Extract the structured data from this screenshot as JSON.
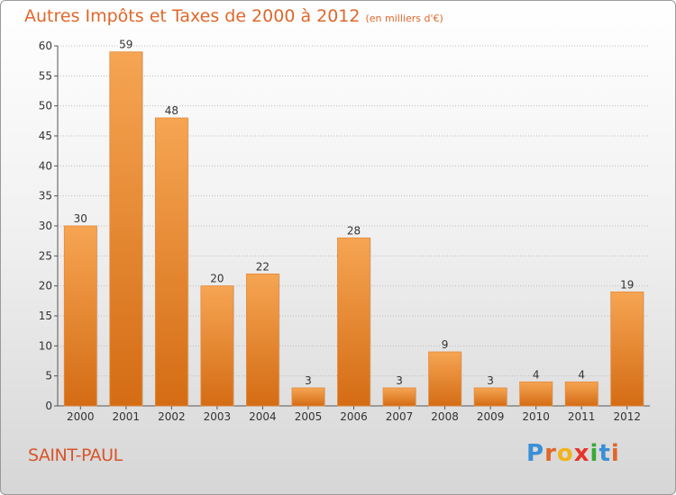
{
  "header": {
    "title": "Autres Impôts et Taxes de 2000 à 2012",
    "subtitle": "(en milliers d'€)"
  },
  "commune_name": "SAINT-PAUL",
  "logo": {
    "text": "Proxiti",
    "letter_colors": [
      "#3a8fd6",
      "#e0672a",
      "#f2b319",
      "#e8332a",
      "#3aa935",
      "#3a8fd6",
      "#e0672a"
    ]
  },
  "chart_data": {
    "type": "bar",
    "title": "Autres Impôts et Taxes de 2000 à 2012",
    "subtitle": "(en milliers d'€)",
    "xlabel": "",
    "ylabel": "",
    "categories": [
      "2000",
      "2001",
      "2002",
      "2003",
      "2004",
      "2005",
      "2006",
      "2007",
      "2008",
      "2009",
      "2010",
      "2011",
      "2012"
    ],
    "values": [
      30,
      59,
      48,
      20,
      22,
      3,
      28,
      3,
      9,
      3,
      4,
      4,
      19
    ],
    "ylim": [
      0,
      60
    ],
    "yticks": [
      0,
      5,
      10,
      15,
      20,
      25,
      30,
      35,
      40,
      45,
      50,
      55,
      60
    ],
    "grid": true,
    "legend": "none",
    "colors": {
      "bar_top": "#f6a553",
      "bar_bottom": "#d46c14",
      "title": "#e0672a",
      "grid": "#bdbdbd"
    }
  }
}
